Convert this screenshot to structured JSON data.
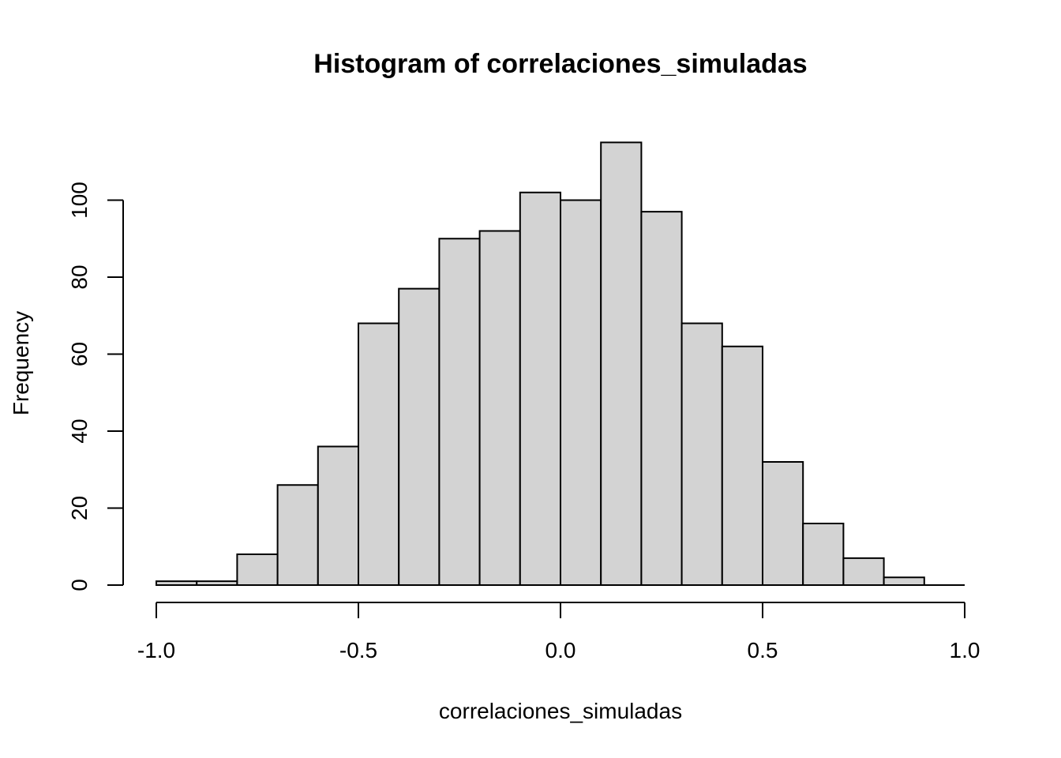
{
  "chart_data": {
    "type": "bar",
    "title": "Histogram of correlaciones_simuladas",
    "xlabel": "correlaciones_simuladas",
    "ylabel": "Frequency",
    "bins": [
      {
        "x0": -1.0,
        "x1": -0.9,
        "count": 1
      },
      {
        "x0": -0.9,
        "x1": -0.8,
        "count": 1
      },
      {
        "x0": -0.8,
        "x1": -0.7,
        "count": 8
      },
      {
        "x0": -0.7,
        "x1": -0.6,
        "count": 26
      },
      {
        "x0": -0.6,
        "x1": -0.5,
        "count": 36
      },
      {
        "x0": -0.5,
        "x1": -0.4,
        "count": 68
      },
      {
        "x0": -0.4,
        "x1": -0.3,
        "count": 77
      },
      {
        "x0": -0.3,
        "x1": -0.2,
        "count": 90
      },
      {
        "x0": -0.2,
        "x1": -0.1,
        "count": 92
      },
      {
        "x0": -0.1,
        "x1": 0.0,
        "count": 102
      },
      {
        "x0": 0.0,
        "x1": 0.1,
        "count": 100
      },
      {
        "x0": 0.1,
        "x1": 0.2,
        "count": 115
      },
      {
        "x0": 0.2,
        "x1": 0.3,
        "count": 97
      },
      {
        "x0": 0.3,
        "x1": 0.4,
        "count": 68
      },
      {
        "x0": 0.4,
        "x1": 0.5,
        "count": 62
      },
      {
        "x0": 0.5,
        "x1": 0.6,
        "count": 32
      },
      {
        "x0": 0.6,
        "x1": 0.7,
        "count": 16
      },
      {
        "x0": 0.7,
        "x1": 0.8,
        "count": 7
      },
      {
        "x0": 0.8,
        "x1": 0.9,
        "count": 2
      },
      {
        "x0": 0.9,
        "x1": 1.0,
        "count": 0
      }
    ],
    "xlim": [
      -1.0,
      1.0
    ],
    "ylim": [
      0,
      115
    ],
    "xticks": [
      {
        "value": -1.0,
        "label": "-1.0"
      },
      {
        "value": -0.5,
        "label": "-0.5"
      },
      {
        "value": 0.0,
        "label": "0.0"
      },
      {
        "value": 0.5,
        "label": "0.5"
      },
      {
        "value": 1.0,
        "label": "1.0"
      }
    ],
    "yticks": [
      {
        "value": 0,
        "label": "0"
      },
      {
        "value": 20,
        "label": "20"
      },
      {
        "value": 40,
        "label": "40"
      },
      {
        "value": 60,
        "label": "60"
      },
      {
        "value": 80,
        "label": "80"
      },
      {
        "value": 100,
        "label": "100"
      }
    ],
    "bar_fill": "#d3d3d3",
    "bar_stroke": "#000000",
    "grid": false,
    "legend": "none"
  }
}
